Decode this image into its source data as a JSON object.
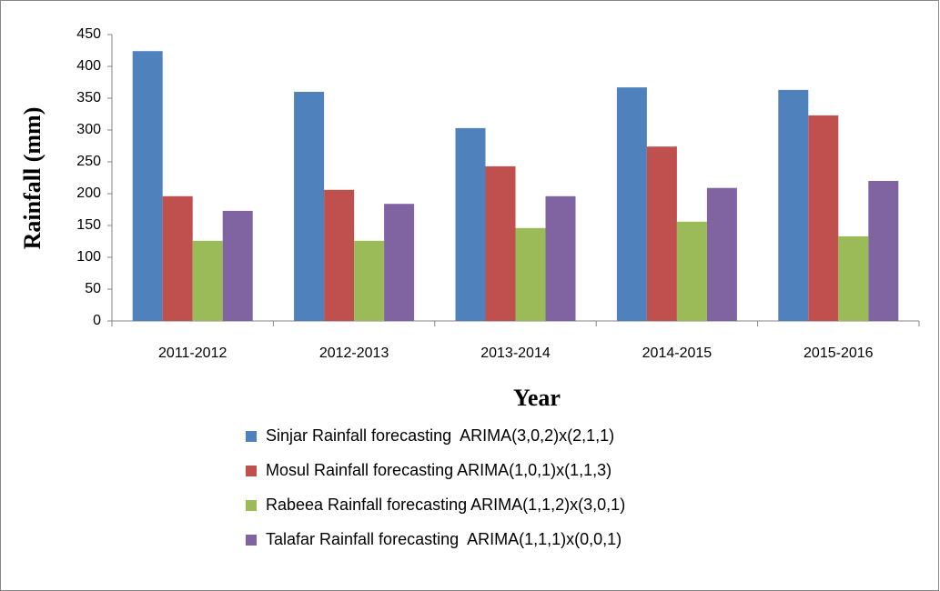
{
  "chart_data": {
    "type": "bar",
    "y_label": "Rainfall (mm)",
    "x_label": "Year",
    "categories": [
      "2011-2012",
      "2012-2013",
      "2013-2014",
      "2014-2015",
      "2015-2016"
    ],
    "series": [
      {
        "name": "Sinjar Rainfall forecasting  ARIMA(3,0,2)x(2,1,1)",
        "color": "#4f81bd",
        "values": [
          424,
          360,
          303,
          367,
          363
        ]
      },
      {
        "name": "Mosul Rainfall forecasting ARIMA(1,0,1)x(1,1,3)",
        "color": "#c0504d",
        "values": [
          196,
          206,
          243,
          274,
          323
        ]
      },
      {
        "name": "Rabeea Rainfall forecasting ARIMA(1,1,2)x(3,0,1)",
        "color": "#9bbb59",
        "values": [
          126,
          126,
          146,
          156,
          133
        ]
      },
      {
        "name": "Talafar Rainfall forecasting  ARIMA(1,1,1)x(0,0,1)",
        "color": "#8064a2",
        "values": [
          173,
          184,
          196,
          209,
          220
        ]
      }
    ],
    "ylim": [
      0,
      450
    ],
    "yticks": [
      0,
      50,
      100,
      150,
      200,
      250,
      300,
      350,
      400,
      450
    ],
    "grid": false
  }
}
